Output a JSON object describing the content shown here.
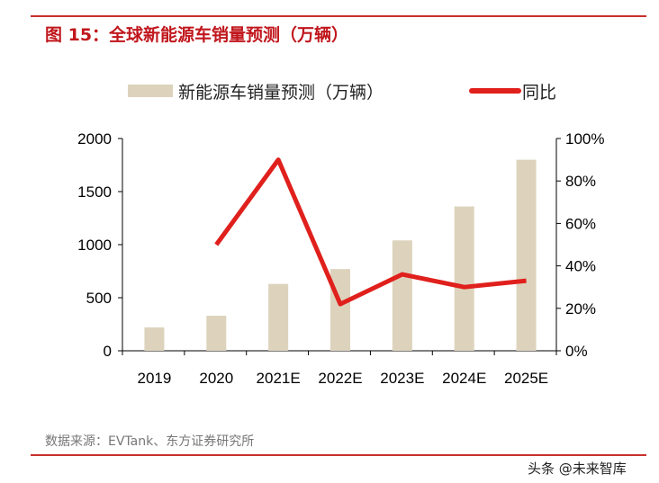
{
  "header": {
    "title": "图 15：全球新能源车销量预测（万辆）"
  },
  "footer": {
    "source": "数据来源：EVTank、东方证券研究所",
    "watermark": "头条 @未来智库"
  },
  "chart_data": {
    "type": "bar+line",
    "categories": [
      "2019",
      "2020",
      "2021E",
      "2022E",
      "2023E",
      "2024E",
      "2025E"
    ],
    "series": [
      {
        "name": "新能源车销量预测（万辆）",
        "type": "bar",
        "axis": "left",
        "color": "#ddd3bd",
        "values": [
          220,
          330,
          630,
          770,
          1040,
          1360,
          1800
        ]
      },
      {
        "name": "同比",
        "type": "line",
        "axis": "right",
        "color": "#e0201c",
        "values": [
          null,
          50,
          90,
          22,
          36,
          30,
          33
        ]
      }
    ],
    "ylim": [
      0,
      2000
    ],
    "y_ticks": [
      "0",
      "500",
      "1000",
      "1500",
      "2000"
    ],
    "y2lim": [
      0,
      100
    ],
    "y2_ticks": [
      "0%",
      "20%",
      "40%",
      "60%",
      "80%",
      "100%"
    ],
    "legend": "top",
    "grid": false
  }
}
